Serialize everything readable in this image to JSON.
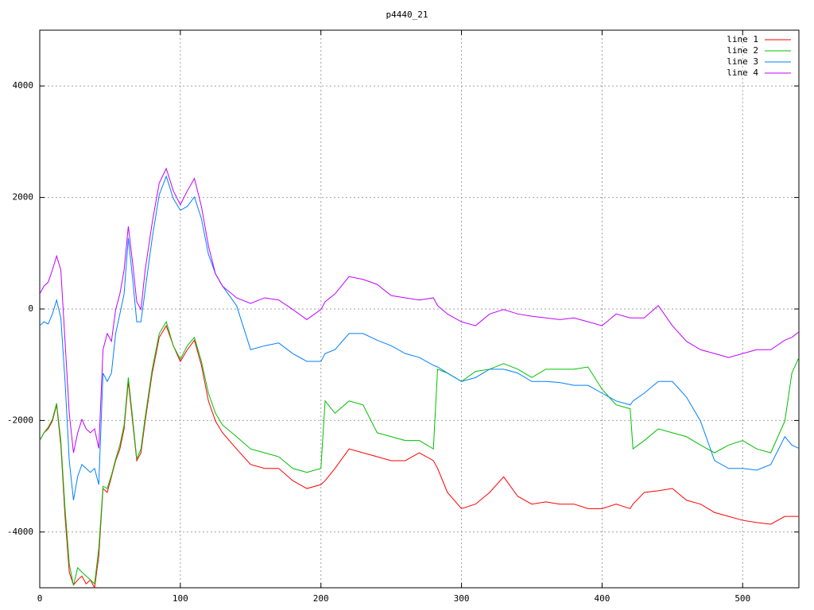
{
  "chart_data": {
    "type": "line",
    "title": "p4440_21",
    "x": [
      0,
      3,
      6,
      9,
      12,
      15,
      18,
      21,
      24,
      27,
      30,
      33,
      36,
      39,
      42,
      45,
      48,
      51,
      54,
      57,
      60,
      63,
      66,
      69,
      72,
      75,
      80,
      85,
      90,
      95,
      100,
      105,
      110,
      115,
      120,
      125,
      130,
      140,
      150,
      160,
      170,
      180,
      190,
      200,
      203,
      210,
      220,
      230,
      240,
      250,
      260,
      270,
      280,
      283,
      290,
      300,
      310,
      320,
      330,
      340,
      350,
      360,
      370,
      380,
      390,
      400,
      410,
      420,
      422,
      430,
      440,
      450,
      460,
      470,
      480,
      490,
      500,
      510,
      520,
      530,
      535,
      540
    ],
    "series": [
      {
        "name": "line 1",
        "color": "#ff0000",
        "values": [
          -2360,
          -2220,
          -2150,
          -2010,
          -1720,
          -2440,
          -3720,
          -4720,
          -4950,
          -4860,
          -4790,
          -4930,
          -4860,
          -5000,
          -4430,
          -3220,
          -3290,
          -3010,
          -2720,
          -2510,
          -2150,
          -1300,
          -2010,
          -2720,
          -2580,
          -2010,
          -1150,
          -510,
          -300,
          -660,
          -940,
          -730,
          -560,
          -1010,
          -1650,
          -2010,
          -2220,
          -2510,
          -2790,
          -2860,
          -2860,
          -3080,
          -3220,
          -3150,
          -3080,
          -2860,
          -2510,
          -2580,
          -2650,
          -2720,
          -2720,
          -2580,
          -2720,
          -2860,
          -3290,
          -3580,
          -3500,
          -3290,
          -3010,
          -3360,
          -3500,
          -3460,
          -3500,
          -3500,
          -3580,
          -3580,
          -3500,
          -3580,
          -3500,
          -3290,
          -3260,
          -3220,
          -3430,
          -3500,
          -3650,
          -3720,
          -3790,
          -3830,
          -3860,
          -3720,
          -3720,
          -3720
        ]
      },
      {
        "name": "line 2",
        "color": "#00c000",
        "values": [
          -2360,
          -2220,
          -2120,
          -1980,
          -1690,
          -2360,
          -3580,
          -4570,
          -4960,
          -4640,
          -4720,
          -4790,
          -4860,
          -4930,
          -4290,
          -3180,
          -3220,
          -2980,
          -2690,
          -2440,
          -2080,
          -1230,
          -1940,
          -2690,
          -2510,
          -1940,
          -1080,
          -440,
          -230,
          -660,
          -900,
          -660,
          -510,
          -940,
          -1510,
          -1870,
          -2080,
          -2290,
          -2510,
          -2580,
          -2650,
          -2860,
          -2930,
          -2860,
          -1650,
          -1870,
          -1650,
          -1720,
          -2220,
          -2290,
          -2360,
          -2360,
          -2510,
          -1080,
          -1150,
          -1300,
          -1120,
          -1080,
          -980,
          -1080,
          -1230,
          -1080,
          -1080,
          -1080,
          -1040,
          -1440,
          -1720,
          -1790,
          -2510,
          -2360,
          -2150,
          -2220,
          -2290,
          -2440,
          -2580,
          -2440,
          -2360,
          -2510,
          -2580,
          -2010,
          -1150,
          -870
        ]
      },
      {
        "name": "line 3",
        "color": "#0080ff",
        "values": [
          -300,
          -230,
          -270,
          -90,
          160,
          -160,
          -1300,
          -2720,
          -3430,
          -3000,
          -2790,
          -2860,
          -2930,
          -2860,
          -3150,
          -1150,
          -1300,
          -1150,
          -440,
          -90,
          270,
          1270,
          560,
          -230,
          -230,
          340,
          1270,
          2050,
          2380,
          1980,
          1770,
          1840,
          2010,
          1620,
          980,
          630,
          410,
          60,
          -730,
          -660,
          -610,
          -800,
          -940,
          -940,
          -800,
          -730,
          -440,
          -440,
          -560,
          -660,
          -800,
          -870,
          -1010,
          -1040,
          -1150,
          -1300,
          -1230,
          -1080,
          -1080,
          -1150,
          -1300,
          -1300,
          -1320,
          -1370,
          -1370,
          -1510,
          -1650,
          -1720,
          -1650,
          -1510,
          -1300,
          -1300,
          -1580,
          -2010,
          -2720,
          -2860,
          -2860,
          -2890,
          -2790,
          -2290,
          -2440,
          -2500
        ]
      },
      {
        "name": "line 4",
        "color": "#c000ff",
        "values": [
          270,
          410,
          480,
          700,
          950,
          700,
          -580,
          -1870,
          -2580,
          -2220,
          -1980,
          -2150,
          -2220,
          -2150,
          -2500,
          -730,
          -440,
          -580,
          -10,
          270,
          700,
          1480,
          840,
          130,
          -10,
          700,
          1550,
          2260,
          2520,
          2120,
          1870,
          2120,
          2340,
          1840,
          1130,
          630,
          410,
          200,
          100,
          200,
          160,
          -10,
          -190,
          -10,
          130,
          270,
          580,
          530,
          440,
          240,
          200,
          160,
          200,
          60,
          -90,
          -230,
          -300,
          -90,
          -10,
          -90,
          -130,
          -160,
          -190,
          -160,
          -230,
          -300,
          -90,
          -160,
          -160,
          -160,
          60,
          -300,
          -580,
          -730,
          -800,
          -870,
          -800,
          -730,
          -730,
          -560,
          -510,
          -410
        ]
      }
    ],
    "xlim": [
      0,
      540
    ],
    "ylim": [
      -5000,
      5000
    ],
    "xticks": [
      0,
      100,
      200,
      300,
      400,
      500
    ],
    "yticks": [
      -4000,
      -2000,
      0,
      2000,
      4000
    ],
    "grid": true,
    "legend": "top-right"
  }
}
